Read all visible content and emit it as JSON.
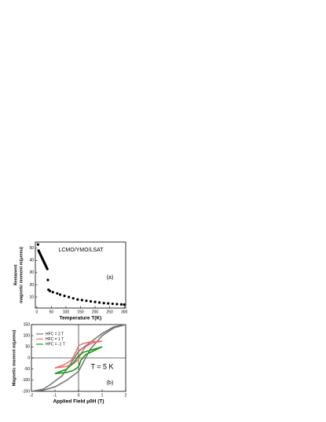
{
  "chart_data": [
    {
      "type": "scatter",
      "title": "LCMO/YMO/LSAT",
      "annotation": "(a)",
      "xlabel": "Temperature T(K)",
      "ylabel": [
        "Remanent",
        "magnetic moment m(μemu)"
      ],
      "color": "#000000",
      "x": [
        4,
        6,
        8,
        10,
        12,
        14,
        16,
        18,
        20,
        22,
        24,
        26,
        28,
        30,
        32,
        34,
        36,
        38,
        40,
        45,
        55,
        70,
        80,
        95,
        110,
        125,
        140,
        155,
        170,
        185,
        200,
        215,
        230,
        245,
        260,
        275,
        290,
        300
      ],
      "values": [
        53,
        48,
        47,
        46,
        45,
        44,
        43,
        42,
        41,
        40,
        39,
        38,
        37,
        36,
        35,
        34,
        33,
        24,
        16,
        15,
        14,
        13,
        12,
        11,
        10,
        9,
        8,
        7.5,
        7,
        6.5,
        6,
        5.5,
        5,
        4.8,
        4.5,
        4.2,
        4,
        3.8
      ],
      "xlim": [
        -5,
        305
      ],
      "ylim": [
        1,
        55
      ],
      "xticks": [
        0,
        50,
        100,
        150,
        200,
        250,
        300
      ],
      "yticks": [
        10,
        20,
        30,
        40,
        50
      ]
    },
    {
      "type": "line",
      "annotation": "(b)",
      "note": "T = 5 K",
      "xlabel": "Applied Field μ0H (T)",
      "ylabel": "Magnetic moment m(μemu)",
      "zero_lines": true,
      "legend": "top-left",
      "xlim": [
        -2,
        2
      ],
      "ylim": [
        -150,
        150
      ],
      "xticks": [
        -2,
        -1,
        0,
        1,
        2
      ],
      "yticks": [
        -150,
        -100,
        -50,
        0,
        50,
        100,
        150
      ],
      "series": [
        {
          "name": "HFC = 2 T",
          "color": "#777777",
          "x": [
            2,
            1.5,
            1,
            0.5,
            0,
            -0.3,
            -0.7,
            -1.2,
            -1.5,
            -2,
            -1.5,
            -1,
            -0.5,
            0,
            0.2,
            0.5,
            1,
            1.5,
            2
          ],
          "values": [
            150,
            140,
            110,
            70,
            30,
            -20,
            -80,
            -120,
            -140,
            -150,
            -145,
            -130,
            -100,
            -60,
            -20,
            40,
            100,
            135,
            150
          ]
        },
        {
          "name": "HFC = 1 T",
          "color": "#f07070",
          "x": [
            1,
            0.5,
            0.2,
            0,
            -0.1,
            -0.3,
            -0.6,
            -1,
            -0.5,
            -0.2,
            0,
            0.1,
            0.3,
            0.6,
            1
          ],
          "values": [
            75,
            72,
            65,
            55,
            30,
            -10,
            -30,
            -45,
            -38,
            -25,
            -5,
            20,
            50,
            68,
            75
          ]
        },
        {
          "name": "HFC = -1 T",
          "color": "#1a9a1a",
          "x": [
            1,
            0.5,
            0.2,
            0,
            -0.2,
            -0.5,
            -1,
            -0.5,
            -0.2,
            0,
            0.1,
            0.3,
            0.6,
            1
          ],
          "values": [
            50,
            35,
            25,
            10,
            -20,
            -50,
            -70,
            -65,
            -55,
            -40,
            -10,
            15,
            30,
            50
          ]
        }
      ]
    }
  ]
}
